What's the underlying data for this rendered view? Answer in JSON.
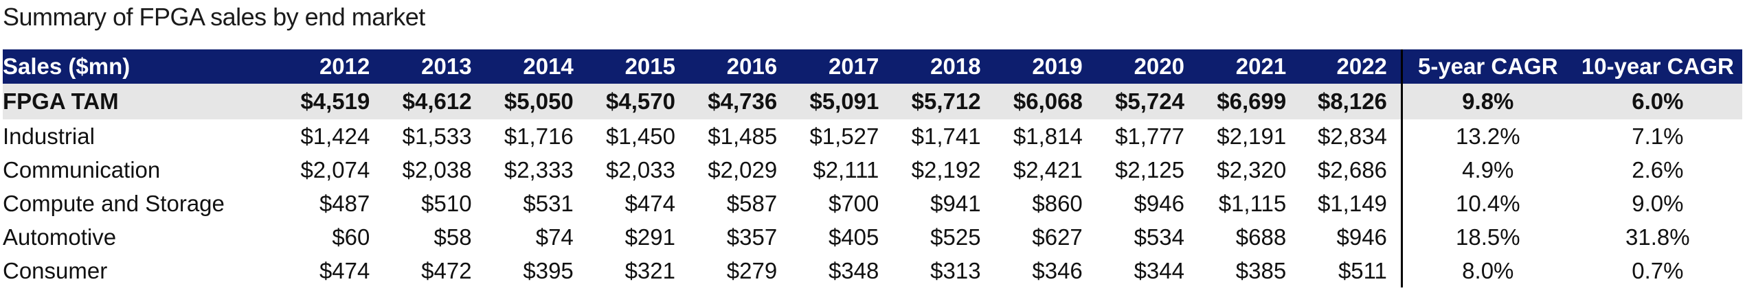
{
  "title": "Summary of FPGA sales by end market",
  "table": {
    "header": {
      "label": "Sales ($mn)",
      "years": [
        "2012",
        "2013",
        "2014",
        "2015",
        "2016",
        "2017",
        "2018",
        "2019",
        "2020",
        "2021",
        "2022"
      ],
      "cagr5": "5-year CAGR",
      "cagr10": "10-year CAGR"
    },
    "rows": [
      {
        "label": "FPGA TAM",
        "values": [
          "$4,519",
          "$4,612",
          "$5,050",
          "$4,570",
          "$4,736",
          "$5,091",
          "$5,712",
          "$6,068",
          "$5,724",
          "$6,699",
          "$8,126"
        ],
        "cagr5": "9.8%",
        "cagr10": "6.0%"
      },
      {
        "label": "Industrial",
        "values": [
          "$1,424",
          "$1,533",
          "$1,716",
          "$1,450",
          "$1,485",
          "$1,527",
          "$1,741",
          "$1,814",
          "$1,777",
          "$2,191",
          "$2,834"
        ],
        "cagr5": "13.2%",
        "cagr10": "7.1%"
      },
      {
        "label": "Communication",
        "values": [
          "$2,074",
          "$2,038",
          "$2,333",
          "$2,033",
          "$2,029",
          "$2,111",
          "$2,192",
          "$2,421",
          "$2,125",
          "$2,320",
          "$2,686"
        ],
        "cagr5": "4.9%",
        "cagr10": "2.6%"
      },
      {
        "label": "Compute and Storage",
        "values": [
          "$487",
          "$510",
          "$531",
          "$474",
          "$587",
          "$700",
          "$941",
          "$860",
          "$946",
          "$1,115",
          "$1,149"
        ],
        "cagr5": "10.4%",
        "cagr10": "9.0%"
      },
      {
        "label": "Automotive",
        "values": [
          "$60",
          "$58",
          "$74",
          "$291",
          "$357",
          "$405",
          "$525",
          "$627",
          "$534",
          "$688",
          "$946"
        ],
        "cagr5": "18.5%",
        "cagr10": "31.8%"
      },
      {
        "label": "Consumer",
        "values": [
          "$474",
          "$472",
          "$395",
          "$321",
          "$279",
          "$348",
          "$313",
          "$346",
          "$344",
          "$385",
          "$511"
        ],
        "cagr5": "8.0%",
        "cagr10": "0.7%"
      }
    ]
  },
  "colors": {
    "header_bg": "#0d1e6e",
    "header_text": "#ffffff",
    "total_row_bg": "#e6e6e6",
    "divider": "#000000"
  }
}
